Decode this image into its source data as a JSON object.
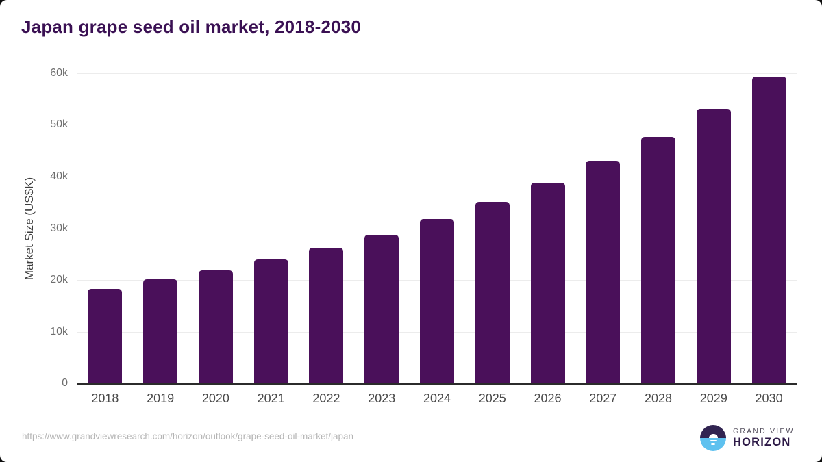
{
  "page": {
    "background_color": "#0d0d0d",
    "card_color": "#ffffff"
  },
  "title": "Japan grape seed oil market, 2018-2030",
  "chart_data": {
    "type": "bar",
    "title": "Japan grape seed oil market, 2018-2030",
    "categories": [
      "2018",
      "2019",
      "2020",
      "2021",
      "2022",
      "2023",
      "2024",
      "2025",
      "2026",
      "2027",
      "2028",
      "2029",
      "2030"
    ],
    "values": [
      18300,
      20200,
      21900,
      24000,
      26200,
      28800,
      31800,
      35100,
      38800,
      43000,
      47700,
      53100,
      59400
    ],
    "xlabel": "",
    "ylabel": "Market Size (US$K)",
    "ylim": [
      0,
      60000
    ],
    "ytick_labels": [
      "0",
      "10k",
      "20k",
      "30k",
      "40k",
      "50k",
      "60k"
    ],
    "grid": "horizontal",
    "legend": "none",
    "bar_color": "#4a105a",
    "gridline_color": "#ececec",
    "axis_line_color": "#2b2b2b"
  },
  "footer": {
    "source_url": "https://www.grandviewresearch.com/horizon/outlook/grape-seed-oil-market/japan"
  },
  "logo": {
    "brand_top": "GRAND VIEW",
    "brand_bottom": "HORIZON",
    "mark_navy_color": "#312451",
    "mark_blue_color": "#5ec1ef"
  }
}
